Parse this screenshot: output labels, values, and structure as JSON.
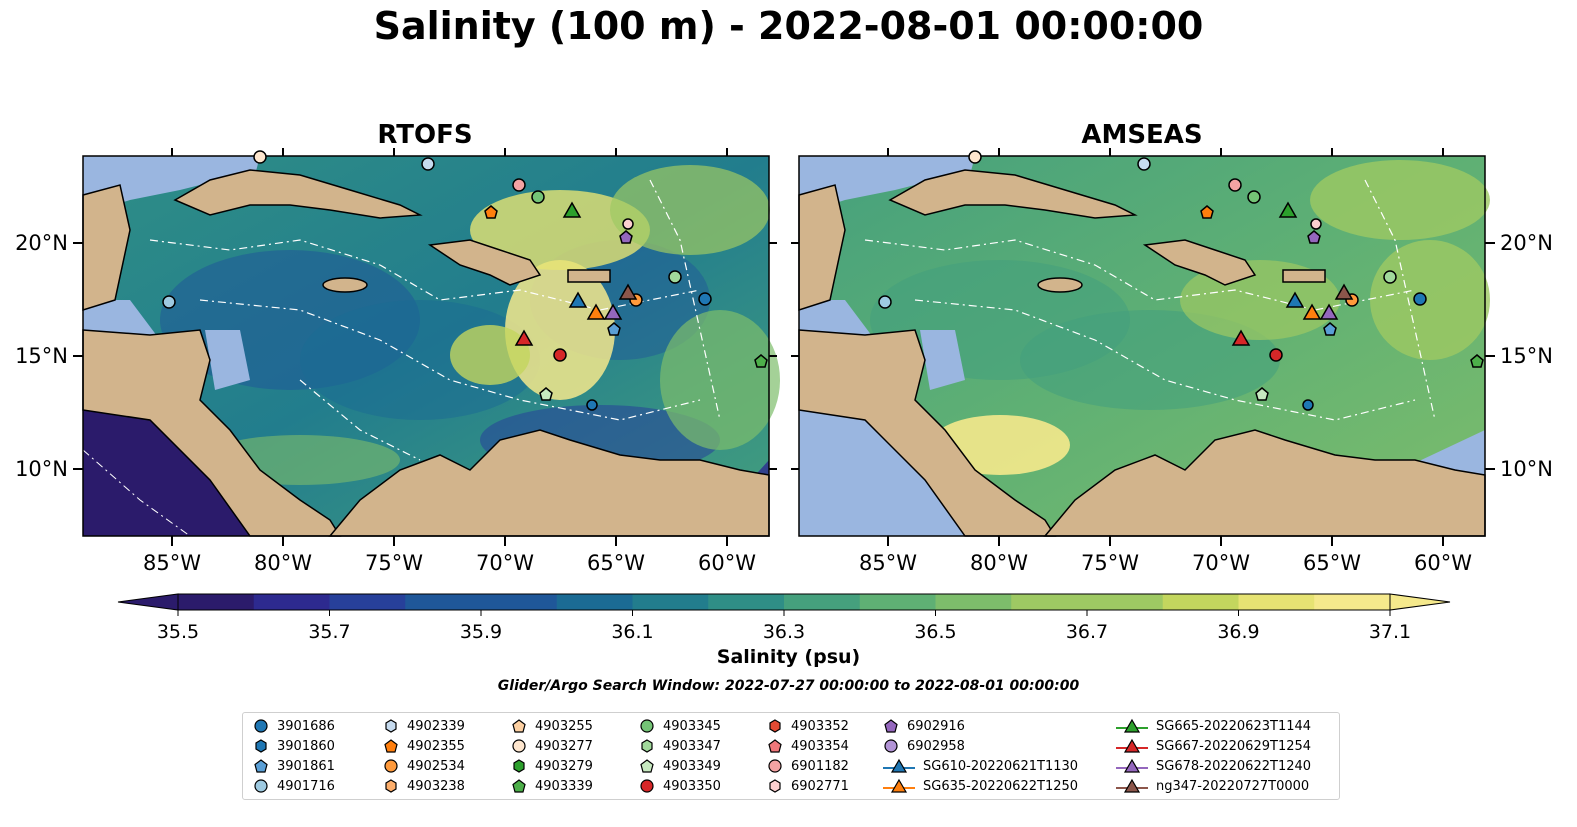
{
  "title": "Salinity (100 m) - 2022-08-01 00:00:00",
  "panels": [
    {
      "title": "RTOFS"
    },
    {
      "title": "AMSEAS"
    }
  ],
  "x_tick_labels": [
    "85°W",
    "80°W",
    "75°W",
    "70°W",
    "65°W",
    "60°W"
  ],
  "y_tick_labels": [
    "20°N",
    "15°N",
    "10°N"
  ],
  "colorbar": {
    "label": "Salinity (psu)",
    "tick_labels": [
      "35.5",
      "35.7",
      "35.9",
      "36.1",
      "36.3",
      "36.5",
      "36.7",
      "36.9",
      "37.1"
    ],
    "colormap": "summer-like viridis (dark purple to yellow)",
    "extend": "both"
  },
  "search_window": "Glider/Argo Search Window: 2022-07-27 00:00:00 to 2022-08-01 00:00:00",
  "legend": {
    "columns": [
      [
        {
          "label": "3901686",
          "marker": "circle",
          "color": "#1f77b4"
        },
        {
          "label": "3901860",
          "marker": "hexagon",
          "color": "#1f77b4"
        },
        {
          "label": "3901861",
          "marker": "pentagon",
          "color": "#5a9fd6"
        },
        {
          "label": "4901716",
          "marker": "circle",
          "color": "#9ecae1"
        }
      ],
      [
        {
          "label": "4902339",
          "marker": "hexagon",
          "color": "#c6dbef"
        },
        {
          "label": "4902355",
          "marker": "pentagon",
          "color": "#ff7f0e"
        },
        {
          "label": "4902534",
          "marker": "circle",
          "color": "#ff9a3c"
        },
        {
          "label": "4903238",
          "marker": "hexagon",
          "color": "#fdae6b"
        }
      ],
      [
        {
          "label": "4903255",
          "marker": "pentagon",
          "color": "#fdd0a2"
        },
        {
          "label": "4903277",
          "marker": "circle",
          "color": "#fee6ce"
        },
        {
          "label": "4903279",
          "marker": "hexagon",
          "color": "#2ca02c"
        },
        {
          "label": "4903339",
          "marker": "pentagon",
          "color": "#4daf4a"
        }
      ],
      [
        {
          "label": "4903345",
          "marker": "circle",
          "color": "#74c476"
        },
        {
          "label": "4903347",
          "marker": "hexagon",
          "color": "#a1d99b"
        },
        {
          "label": "4903349",
          "marker": "pentagon",
          "color": "#c7e9c0"
        },
        {
          "label": "4903350",
          "marker": "circle",
          "color": "#d62728"
        }
      ],
      [
        {
          "label": "4903352",
          "marker": "hexagon",
          "color": "#e34a33"
        },
        {
          "label": "4903354",
          "marker": "pentagon",
          "color": "#f0777a"
        },
        {
          "label": "6901182",
          "marker": "circle",
          "color": "#f4a3a3"
        },
        {
          "label": "6902771",
          "marker": "hexagon",
          "color": "#fcd0d0"
        }
      ],
      [
        {
          "label": "6902916",
          "marker": "pentagon",
          "color": "#9467bd"
        },
        {
          "label": "6902958",
          "marker": "circle",
          "color": "#b294d6"
        },
        {
          "label": "SG610-20220621T1130",
          "marker": "triangle-line",
          "color": "#1f77b4"
        },
        {
          "label": "SG635-20220622T1250",
          "marker": "triangle-line",
          "color": "#ff7f0e"
        }
      ],
      [
        {
          "label": "SG665-20220623T1144",
          "marker": "triangle-line",
          "color": "#2ca02c"
        },
        {
          "label": "SG667-20220629T1254",
          "marker": "triangle-line",
          "color": "#d62728"
        },
        {
          "label": "SG678-20220622T1240",
          "marker": "triangle-line",
          "color": "#9467bd"
        },
        {
          "label": "ng347-20220727T0000",
          "marker": "triangle-line",
          "color": "#8c564b"
        }
      ]
    ]
  },
  "colors": {
    "land": "#d2b48c",
    "shelf": "#9ab6e0",
    "cmap": [
      "#2b1b6b",
      "#2d2a8f",
      "#27409a",
      "#1f5799",
      "#1b6b94",
      "#227d8d",
      "#2f8e86",
      "#45a07d",
      "#5fb074",
      "#7dbd6b",
      "#9ec963",
      "#c3d65e",
      "#e6e373",
      "#f5e98c"
    ]
  }
}
